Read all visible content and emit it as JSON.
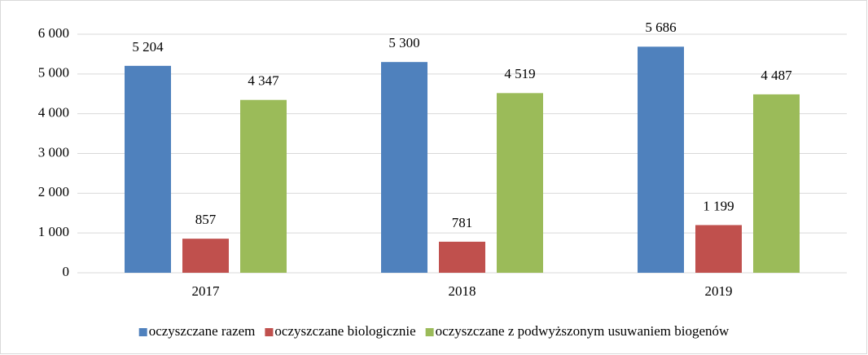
{
  "chart_data": {
    "type": "bar",
    "categories": [
      "2017",
      "2018",
      "2019"
    ],
    "series": [
      {
        "name": "oczyszczane razem",
        "color": "#4f81bd",
        "values": [
          5204,
          5300,
          5686
        ],
        "value_labels": [
          "5 204",
          "5 300",
          "5 686"
        ]
      },
      {
        "name": "oczyszczane biologicznie",
        "color": "#c0504d",
        "values": [
          857,
          781,
          1199
        ],
        "value_labels": [
          "857",
          "781",
          "1 199"
        ]
      },
      {
        "name": "oczyszczane z podwyższonym usuwaniem biogenów",
        "color": "#9bbb59",
        "values": [
          4347,
          4519,
          4487
        ],
        "value_labels": [
          "4 347",
          "4 519",
          "4 487"
        ]
      }
    ],
    "ylim": [
      0,
      6000
    ],
    "yticks": [
      0,
      {
        "value": 1000,
        "label": "1 000"
      },
      {
        "value": 2000,
        "label": "2 000"
      },
      {
        "value": 3000,
        "label": "3 000"
      },
      {
        "value": 4000,
        "label": "4 000"
      },
      {
        "value": 5000,
        "label": "5 000"
      },
      {
        "value": 6000,
        "label": "6 000"
      }
    ],
    "grid": true,
    "legend": "bottom"
  }
}
